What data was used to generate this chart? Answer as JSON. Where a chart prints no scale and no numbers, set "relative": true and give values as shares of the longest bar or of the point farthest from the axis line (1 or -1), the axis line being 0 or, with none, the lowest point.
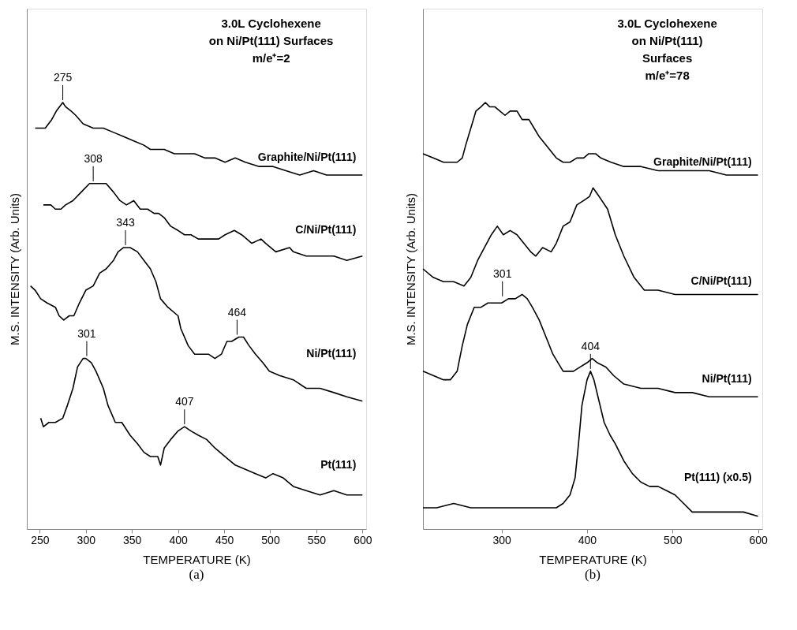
{
  "chart_data": [
    {
      "type": "line",
      "title": "3.0L Cyclohexene\non Ni/Pt(111) Surfaces\nm/e⁺=2",
      "xlabel": "TEMPERATURE (K)",
      "ylabel": "M.S. INTENSITY (Arb. Units)",
      "xlim": [
        236,
        604
      ],
      "xticks": [
        250,
        300,
        350,
        400,
        450,
        500,
        550,
        600
      ],
      "relative": true,
      "legend": false,
      "grid": false,
      "marker": "none",
      "line_style": "solid",
      "series": [
        {
          "name": "Graphite/Ni/Pt(111)",
          "color": "#000000",
          "x": [
            245,
            251,
            256,
            263,
            268,
            275,
            278,
            284,
            289,
            297,
            308,
            319,
            330,
            341,
            352,
            363,
            370,
            385,
            396,
            407,
            418,
            429,
            440,
            451,
            462,
            473,
            488,
            503,
            517,
            532,
            547,
            561,
            576,
            591,
            600
          ],
          "values": [
            0.94,
            0.94,
            0.94,
            0.96,
            0.98,
            1.0,
            0.99,
            0.98,
            0.97,
            0.95,
            0.94,
            0.94,
            0.93,
            0.92,
            0.91,
            0.9,
            0.89,
            0.89,
            0.88,
            0.88,
            0.88,
            0.87,
            0.87,
            0.86,
            0.87,
            0.86,
            0.85,
            0.85,
            0.84,
            0.83,
            0.84,
            0.83,
            0.83,
            0.83,
            0.83
          ]
        },
        {
          "name": "C/Ni/Pt(111)",
          "color": "#000000",
          "x": [
            254,
            262,
            267,
            273,
            278,
            286,
            295,
            304,
            310,
            317,
            322,
            330,
            337,
            344,
            352,
            359,
            367,
            374,
            379,
            385,
            392,
            400,
            407,
            414,
            422,
            429,
            436,
            444,
            451,
            461,
            469,
            480,
            490,
            495,
            506,
            521,
            525,
            539,
            554,
            569,
            583,
            600
          ],
          "values": [
            0.76,
            0.76,
            0.75,
            0.75,
            0.76,
            0.77,
            0.79,
            0.81,
            0.81,
            0.81,
            0.81,
            0.79,
            0.77,
            0.76,
            0.77,
            0.75,
            0.75,
            0.74,
            0.74,
            0.73,
            0.71,
            0.7,
            0.69,
            0.69,
            0.68,
            0.68,
            0.68,
            0.68,
            0.69,
            0.7,
            0.69,
            0.67,
            0.68,
            0.67,
            0.65,
            0.66,
            0.65,
            0.64,
            0.64,
            0.64,
            0.63,
            0.64
          ]
        },
        {
          "name": "Ni/Pt(111)",
          "color": "#000000",
          "x": [
            240,
            245,
            251,
            258,
            267,
            271,
            276,
            282,
            287,
            293,
            300,
            308,
            315,
            322,
            330,
            335,
            341,
            348,
            356,
            363,
            370,
            376,
            381,
            389,
            400,
            403,
            411,
            418,
            425,
            433,
            440,
            447,
            453,
            458,
            466,
            471,
            477,
            484,
            492,
            499,
            510,
            525,
            539,
            554,
            569,
            583,
            600
          ],
          "values": [
            0.57,
            0.56,
            0.54,
            0.53,
            0.52,
            0.5,
            0.49,
            0.5,
            0.5,
            0.53,
            0.56,
            0.57,
            0.6,
            0.61,
            0.63,
            0.65,
            0.66,
            0.66,
            0.65,
            0.63,
            0.61,
            0.58,
            0.54,
            0.52,
            0.5,
            0.47,
            0.43,
            0.41,
            0.41,
            0.41,
            0.4,
            0.41,
            0.44,
            0.44,
            0.45,
            0.45,
            0.43,
            0.41,
            0.39,
            0.37,
            0.36,
            0.35,
            0.33,
            0.33,
            0.32,
            0.31,
            0.3
          ]
        },
        {
          "name": "Pt(111)",
          "color": "#000000",
          "x": [
            251,
            254,
            260,
            267,
            275,
            280,
            286,
            291,
            297,
            300,
            306,
            311,
            319,
            324,
            332,
            339,
            348,
            356,
            363,
            370,
            378,
            381,
            385,
            392,
            400,
            407,
            414,
            422,
            431,
            440,
            451,
            462,
            473,
            484,
            495,
            503,
            514,
            525,
            539,
            554,
            569,
            583,
            600
          ],
          "values": [
            0.26,
            0.24,
            0.25,
            0.25,
            0.26,
            0.29,
            0.33,
            0.38,
            0.4,
            0.4,
            0.39,
            0.37,
            0.33,
            0.29,
            0.25,
            0.25,
            0.22,
            0.2,
            0.18,
            0.17,
            0.17,
            0.15,
            0.19,
            0.21,
            0.23,
            0.24,
            0.23,
            0.22,
            0.21,
            0.19,
            0.17,
            0.15,
            0.14,
            0.13,
            0.12,
            0.13,
            0.12,
            0.1,
            0.09,
            0.08,
            0.09,
            0.08,
            0.08
          ]
        }
      ],
      "annotations": [
        {
          "text": "275",
          "x": 275,
          "y": 1.0
        },
        {
          "text": "308",
          "x": 308,
          "y": 0.81
        },
        {
          "text": "343",
          "x": 343,
          "y": 0.66
        },
        {
          "text": "464",
          "x": 464,
          "y": 0.45
        },
        {
          "text": "301",
          "x": 301,
          "y": 0.4
        },
        {
          "text": "407",
          "x": 407,
          "y": 0.24
        },
        "(a)"
      ]
    },
    {
      "type": "line",
      "title": "3.0L Cyclohexene\non Ni/Pt(111)\nSurfaces\nm/e⁺=78",
      "xlabel": "TEMPERATURE (K)",
      "ylabel": "M.S. INTENSITY (Arb. Units)",
      "xlim": [
        208,
        605
      ],
      "xticks": [
        300,
        400,
        500,
        600
      ],
      "relative": true,
      "legend": false,
      "grid": false,
      "marker": "none",
      "line_style": "solid",
      "series": [
        {
          "name": "Graphite/Ni/Pt(111)",
          "color": "#000000",
          "x": [
            208,
            220,
            232,
            240,
            248,
            254,
            258,
            264,
            270,
            276,
            281,
            286,
            292,
            298,
            304,
            310,
            318,
            324,
            332,
            338,
            344,
            352,
            364,
            372,
            380,
            388,
            396,
            402,
            410,
            416,
            428,
            443,
            463,
            483,
            503,
            523,
            543,
            563,
            583,
            600
          ],
          "values": [
            0.88,
            0.87,
            0.86,
            0.86,
            0.86,
            0.87,
            0.9,
            0.94,
            0.98,
            0.99,
            1.0,
            0.99,
            0.99,
            0.98,
            0.97,
            0.98,
            0.98,
            0.96,
            0.96,
            0.94,
            0.92,
            0.9,
            0.87,
            0.86,
            0.86,
            0.87,
            0.87,
            0.88,
            0.88,
            0.87,
            0.86,
            0.85,
            0.85,
            0.84,
            0.84,
            0.84,
            0.84,
            0.83,
            0.83,
            0.83
          ]
        },
        {
          "name": "C/Ni/Pt(111)",
          "color": "#000000",
          "x": [
            208,
            220,
            232,
            244,
            256,
            264,
            272,
            280,
            288,
            295,
            302,
            310,
            318,
            326,
            334,
            340,
            348,
            358,
            364,
            372,
            380,
            388,
            396,
            403,
            407,
            414,
            424,
            433,
            443,
            455,
            467,
            483,
            503,
            523,
            543,
            563,
            583,
            600
          ],
          "values": [
            0.61,
            0.59,
            0.58,
            0.58,
            0.57,
            0.59,
            0.63,
            0.66,
            0.69,
            0.71,
            0.69,
            0.7,
            0.69,
            0.67,
            0.65,
            0.64,
            0.66,
            0.65,
            0.67,
            0.71,
            0.72,
            0.76,
            0.77,
            0.78,
            0.8,
            0.78,
            0.75,
            0.69,
            0.64,
            0.59,
            0.56,
            0.56,
            0.55,
            0.55,
            0.55,
            0.55,
            0.55,
            0.55
          ]
        },
        {
          "name": "Ni/Pt(111)",
          "color": "#000000",
          "x": [
            208,
            220,
            232,
            240,
            248,
            254,
            260,
            268,
            276,
            284,
            292,
            300,
            308,
            316,
            324,
            330,
            336,
            344,
            352,
            360,
            372,
            384,
            392,
            400,
            406,
            412,
            422,
            431,
            443,
            463,
            483,
            503,
            523,
            543,
            563,
            583,
            600
          ],
          "values": [
            0.37,
            0.36,
            0.35,
            0.35,
            0.37,
            0.43,
            0.48,
            0.52,
            0.52,
            0.53,
            0.53,
            0.53,
            0.54,
            0.54,
            0.55,
            0.54,
            0.52,
            0.49,
            0.45,
            0.41,
            0.37,
            0.37,
            0.38,
            0.39,
            0.4,
            0.39,
            0.38,
            0.36,
            0.34,
            0.33,
            0.33,
            0.32,
            0.32,
            0.31,
            0.31,
            0.31,
            0.31
          ]
        },
        {
          "name": "Pt(111) (x0.5)",
          "color": "#000000",
          "x": [
            208,
            224,
            244,
            264,
            284,
            308,
            324,
            344,
            364,
            372,
            380,
            386,
            390,
            394,
            400,
            404,
            408,
            414,
            420,
            427,
            433,
            443,
            453,
            463,
            473,
            483,
            493,
            503,
            513,
            523,
            543,
            563,
            583,
            600
          ],
          "values": [
            0.05,
            0.05,
            0.06,
            0.05,
            0.05,
            0.05,
            0.05,
            0.05,
            0.05,
            0.06,
            0.08,
            0.12,
            0.2,
            0.29,
            0.35,
            0.37,
            0.35,
            0.3,
            0.25,
            0.22,
            0.2,
            0.16,
            0.13,
            0.11,
            0.1,
            0.1,
            0.09,
            0.08,
            0.06,
            0.04,
            0.04,
            0.04,
            0.04,
            0.03
          ]
        }
      ],
      "annotations": [
        {
          "text": "301",
          "x": 301,
          "y": 0.54
        },
        {
          "text": "404",
          "x": 404,
          "y": 0.37
        },
        "(b)"
      ]
    }
  ]
}
